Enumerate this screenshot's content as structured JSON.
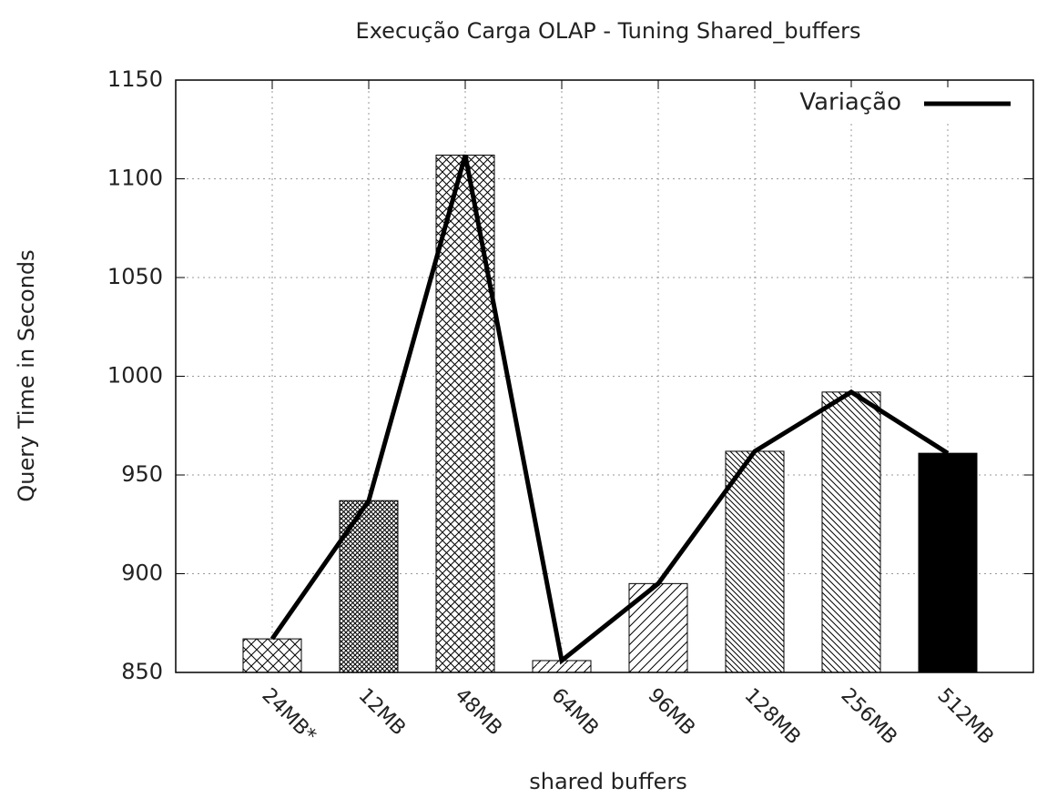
{
  "chart_data": {
    "type": "bar",
    "title": "Execução Carga OLAP - Tuning Shared_buffers",
    "x_label": "shared buffers",
    "y_label": "Query Time in Seconds",
    "categories": [
      "24MB*",
      "12MB",
      "48MB",
      "64MB",
      "96MB",
      "128MB",
      "256MB",
      "512MB"
    ],
    "values": [
      867,
      937,
      1112,
      856,
      895,
      962,
      992,
      961
    ],
    "line_series": {
      "name": "Variação",
      "color": "#000000",
      "values": [
        867,
        937,
        1112,
        856,
        895,
        962,
        992,
        961
      ]
    },
    "ylim": [
      850,
      1150
    ],
    "yticks": [
      850,
      900,
      950,
      1000,
      1050,
      1100,
      1150
    ],
    "grid": true,
    "legend": "top-right"
  }
}
